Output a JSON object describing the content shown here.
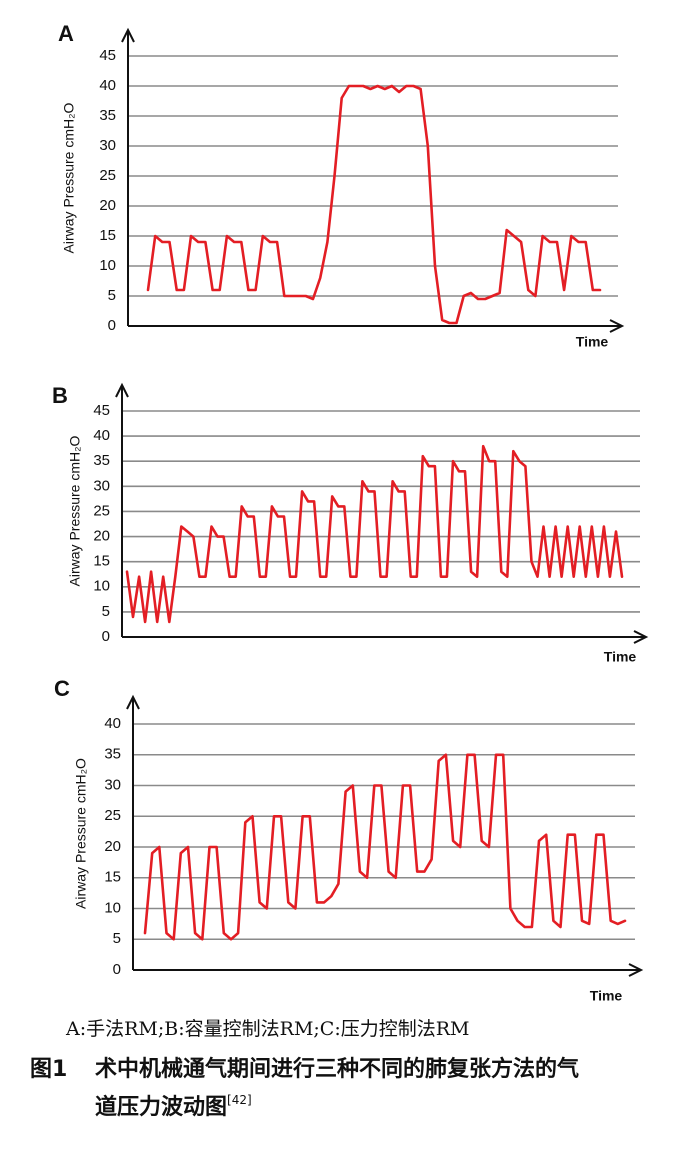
{
  "chart_data": [
    {
      "type": "line",
      "label": "A",
      "ylabel": "Airway Pressure cmH₂O",
      "xlabel": "Time",
      "ylim": [
        0,
        45
      ],
      "yticks": [
        0,
        5,
        10,
        15,
        20,
        25,
        30,
        35,
        40,
        45
      ],
      "grid": true,
      "series": [
        {
          "color": "#e31e24",
          "values": [
            6,
            15,
            14,
            14,
            6,
            6,
            15,
            14,
            14,
            6,
            6,
            15,
            14,
            14,
            6,
            6,
            15,
            14,
            14,
            5,
            5,
            5,
            5,
            4.5,
            8,
            14,
            25,
            38,
            40,
            40,
            40,
            39.5,
            40,
            39.5,
            40,
            39,
            40,
            40,
            39.5,
            30,
            10,
            1,
            0.5,
            0.5,
            5,
            5.5,
            4.5,
            4.5,
            5,
            5.5,
            16,
            15,
            14,
            6,
            5,
            15,
            14,
            14,
            6,
            15,
            14,
            14,
            6,
            6
          ]
        }
      ]
    },
    {
      "type": "line",
      "label": "B",
      "ylabel": "Airway Pressure cmH₂O",
      "xlabel": "Time",
      "ylim": [
        0,
        45
      ],
      "yticks": [
        0,
        5,
        10,
        15,
        20,
        25,
        30,
        35,
        40,
        45
      ],
      "grid": true,
      "series": [
        {
          "color": "#e31e24",
          "values": [
            13,
            4,
            12,
            3,
            13,
            3,
            12,
            3,
            12,
            22,
            21,
            20,
            12,
            12,
            22,
            20,
            20,
            12,
            12,
            26,
            24,
            24,
            12,
            12,
            26,
            24,
            24,
            12,
            12,
            29,
            27,
            27,
            12,
            12,
            28,
            26,
            26,
            12,
            12,
            31,
            29,
            29,
            12,
            12,
            31,
            29,
            29,
            12,
            12,
            36,
            34,
            34,
            12,
            12,
            35,
            33,
            33,
            13,
            12,
            38,
            35,
            35,
            13,
            12,
            37,
            35,
            34,
            15,
            12,
            22,
            12,
            22,
            12,
            22,
            12,
            22,
            12,
            22,
            12,
            22,
            12,
            21,
            12
          ]
        }
      ]
    },
    {
      "type": "line",
      "label": "C",
      "ylabel": "Airway Pressure cmH₂O",
      "xlabel": "Time",
      "ylim": [
        0,
        40
      ],
      "yticks": [
        0,
        5,
        10,
        15,
        20,
        25,
        30,
        35,
        40
      ],
      "grid": true,
      "series": [
        {
          "color": "#e31e24",
          "values": [
            6,
            19,
            20,
            6,
            5,
            19,
            20,
            6,
            5,
            20,
            20,
            6,
            5,
            6,
            24,
            25,
            11,
            10,
            25,
            25,
            11,
            10,
            25,
            25,
            11,
            11,
            12,
            14,
            29,
            30,
            16,
            15,
            30,
            30,
            16,
            15,
            30,
            30,
            16,
            16,
            18,
            34,
            35,
            21,
            20,
            35,
            35,
            21,
            20,
            35,
            35,
            10,
            8,
            7,
            7,
            21,
            22,
            8,
            7,
            22,
            22,
            8,
            7.5,
            22,
            22,
            8,
            7.5,
            8
          ]
        }
      ]
    }
  ],
  "caption": {
    "legend": "A:手法RM;B:容量控制法RM;C:压力控制法RM",
    "figure": "图1",
    "title_lines": [
      "术中机械通气期间进行三种不同的肺复张方法的气",
      "道压力波动图"
    ],
    "ref": "[42]"
  }
}
